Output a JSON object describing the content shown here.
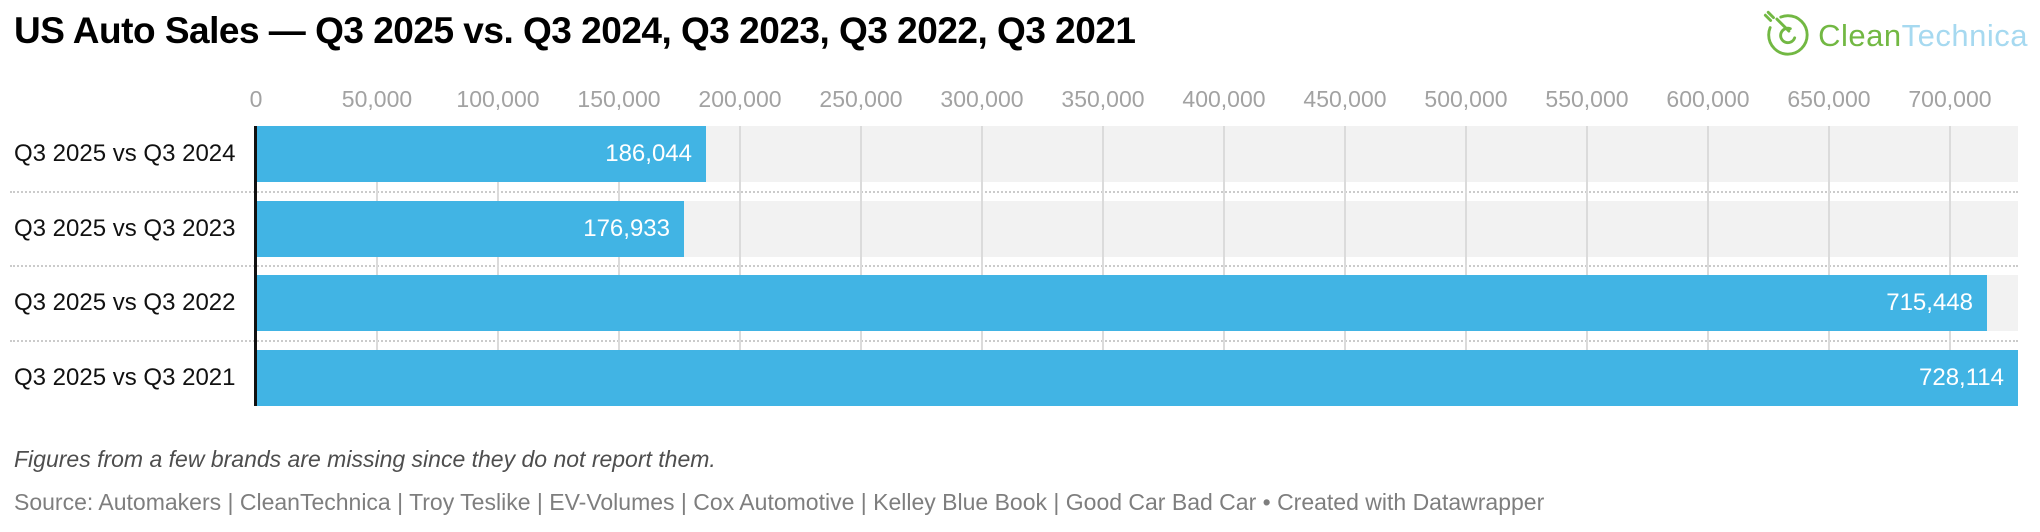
{
  "header": {
    "title": "US Auto Sales — Q3 2025 vs. Q3 2024, Q3 2023, Q3 2022, Q3 2021",
    "logo": {
      "icon": "cleantechnica-plug-circle-icon",
      "text_green": "Clean",
      "text_blue": "Technica",
      "green_color": "#72B843",
      "blue_color": "#A6D9F0"
    }
  },
  "chart_data": {
    "type": "bar",
    "orientation": "horizontal",
    "title": "US Auto Sales — Q3 2025 vs. Q3 2024, Q3 2023, Q3 2022, Q3 2021",
    "categories": [
      "Q3 2025 vs Q3 2024",
      "Q3 2025 vs Q3 2023",
      "Q3 2025 vs Q3 2022",
      "Q3 2025 vs Q3 2021"
    ],
    "values": [
      186044,
      176933,
      715448,
      728114
    ],
    "value_labels": [
      "186,044",
      "176,933",
      "715,448",
      "728,114"
    ],
    "axis": {
      "min": 0,
      "max": 728114,
      "tick_interval": 50000,
      "tick_values": [
        0,
        50000,
        100000,
        150000,
        200000,
        250000,
        300000,
        350000,
        400000,
        450000,
        500000,
        550000,
        600000,
        650000,
        700000
      ],
      "tick_labels": [
        "0",
        "50,000",
        "100,000",
        "150,000",
        "200,000",
        "250,000",
        "300,000",
        "350,000",
        "400,000",
        "450,000",
        "500,000",
        "550,000",
        "600,000",
        "650,000",
        "700,000"
      ]
    },
    "grid": true,
    "legend": "none",
    "colors": {
      "bar": "#41B4E4",
      "band": "#F2F2F2",
      "gridline": "#DBDBDB",
      "separator": "#CBCBCB",
      "axis_line": "#111111",
      "tick_text": "#A2A2A2",
      "value_text": "#FFFFFF"
    }
  },
  "footnote": "Figures from a few brands are missing since they do not report them.",
  "source": "Source: Automakers | CleanTechnica | Troy Teslike | EV-Volumes | Cox Automotive | Kelley Blue Book | Good Car Bad Car • Created with Datawrapper"
}
